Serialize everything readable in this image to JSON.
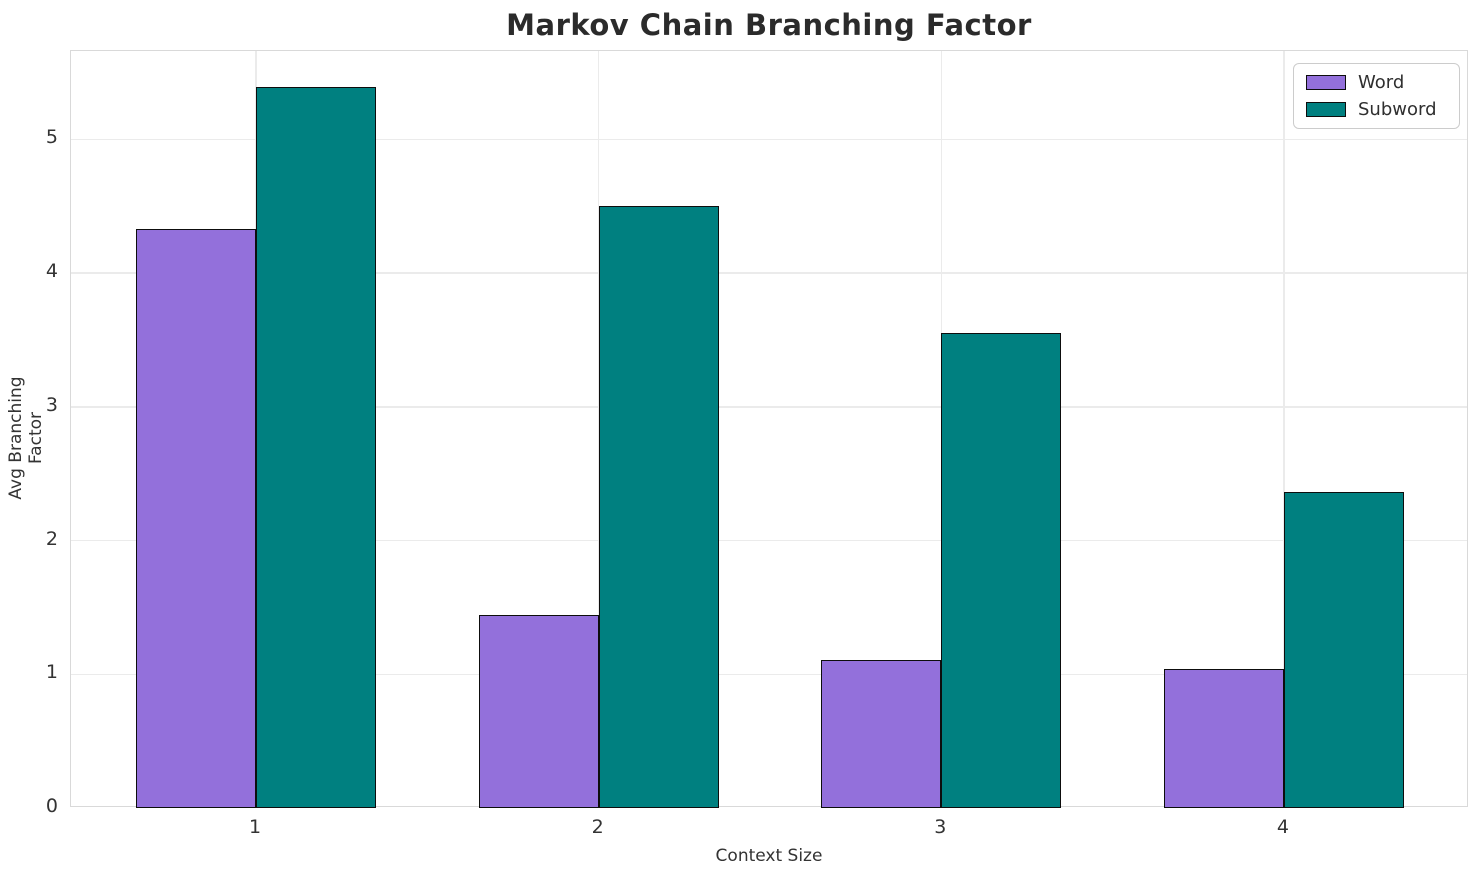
{
  "title": "Markov Chain Branching Factor",
  "chart_data": {
    "type": "bar",
    "title": "Markov Chain Branching Factor",
    "xlabel": "Context Size",
    "ylabel": "Avg Branching Factor",
    "categories": [
      "1",
      "2",
      "3",
      "4"
    ],
    "series": [
      {
        "name": "Word",
        "color": "#9370DB",
        "values": [
          4.33,
          1.44,
          1.11,
          1.04
        ]
      },
      {
        "name": "Subword",
        "color": "#008080",
        "values": [
          5.39,
          4.5,
          3.55,
          2.36
        ]
      }
    ],
    "yticks": [
      0,
      1,
      2,
      3,
      4,
      5
    ],
    "ylim": [
      0,
      5.66
    ],
    "xlim": [
      0.46,
      4.54
    ],
    "bar_width": 0.35,
    "bar_edge_color": "#0d0d0d",
    "grid": true,
    "grid_color": "#ebebeb",
    "frame_color": "#d9d9d9",
    "legend_position": "upper right",
    "text_color": "#333333",
    "title_color": "#2b2b2b"
  }
}
